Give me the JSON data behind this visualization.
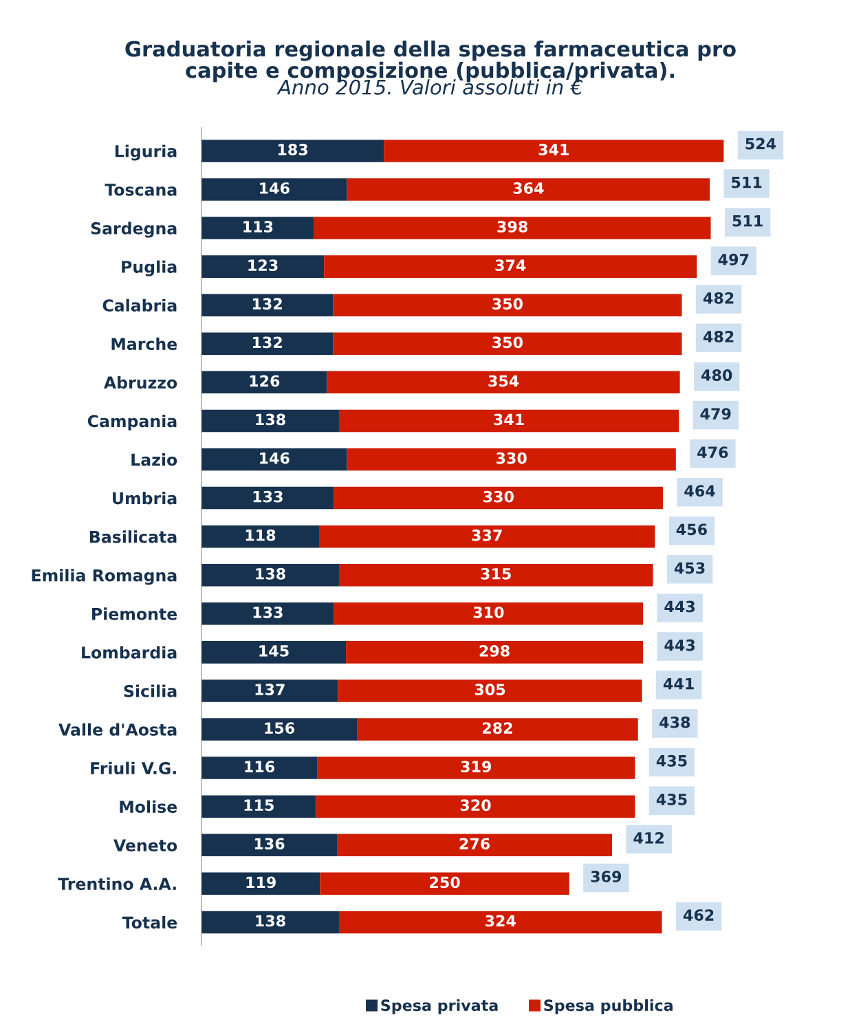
{
  "chart_data": {
    "type": "bar",
    "orientation": "horizontal",
    "stacked": true,
    "title": "Graduatoria regionale della spesa farmaceutica pro\ncapite e composizione (pubblica/privata).",
    "subtitle": "Anno 2015. Valori assoluti in €",
    "categories": [
      "Liguria",
      "Toscana",
      "Sardegna",
      "Puglia",
      "Calabria",
      "Marche",
      "Abruzzo",
      "Campania",
      "Lazio",
      "Umbria",
      "Basilicata",
      "Emilia Romagna",
      "Piemonte",
      "Lombardia",
      "Sicilia",
      "Valle d'Aosta",
      "Friuli V.G.",
      "Molise",
      "Veneto",
      "Trentino A.A.",
      "Totale"
    ],
    "series": [
      {
        "name": "Spesa privata",
        "color": "#17324f",
        "values": [
          183,
          146,
          113,
          123,
          132,
          132,
          126,
          138,
          146,
          133,
          118,
          138,
          133,
          145,
          137,
          156,
          116,
          115,
          136,
          119,
          138
        ]
      },
      {
        "name": "Spesa pubblica",
        "color": "#d01c00",
        "values": [
          341,
          364,
          398,
          374,
          350,
          350,
          354,
          341,
          330,
          330,
          337,
          315,
          310,
          298,
          305,
          282,
          319,
          320,
          276,
          250,
          324
        ]
      }
    ],
    "data_labels": true,
    "totals": [
      "524",
      "511",
      "511",
      "497",
      "482",
      "482",
      "480",
      "479",
      "476",
      "464",
      "456",
      "453",
      "443",
      "443",
      "441",
      "438",
      "435",
      "435",
      "412",
      "369",
      "462"
    ],
    "legend": "bottom",
    "grid": false
  }
}
